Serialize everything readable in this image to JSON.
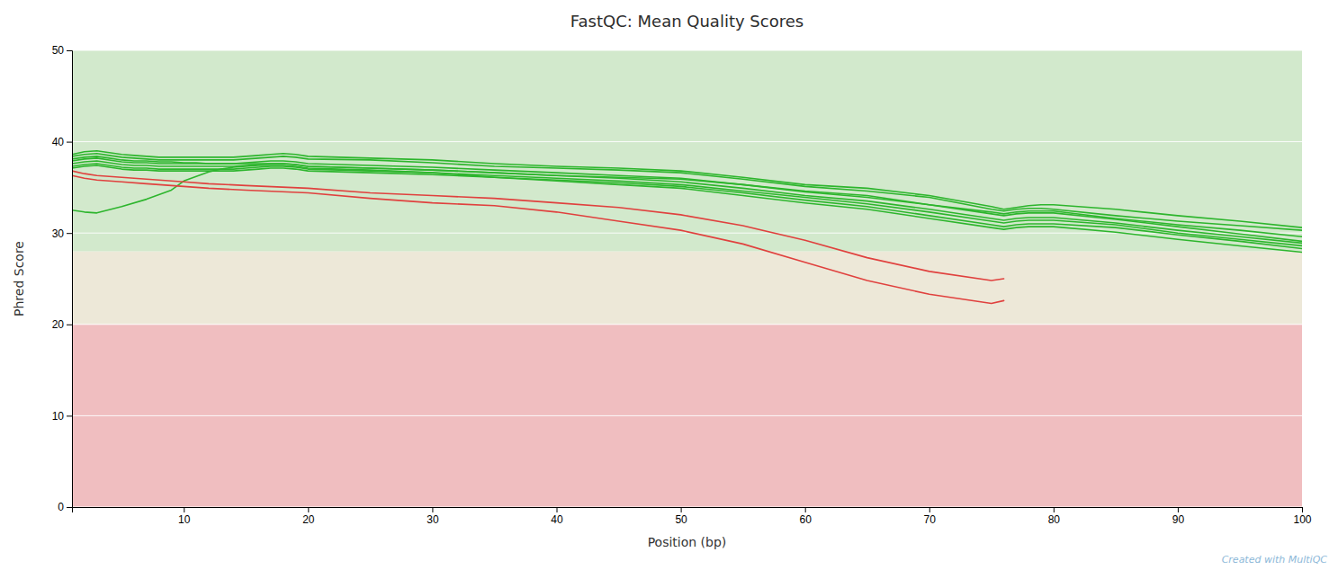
{
  "chart_data": {
    "type": "line",
    "title": "FastQC: Mean Quality Scores",
    "xlabel": "Position (bp)",
    "ylabel": "Phred Score",
    "annotation": "Created with MultiQC",
    "xlim": [
      1,
      100
    ],
    "ylim": [
      0,
      50
    ],
    "xticks": [
      10,
      20,
      30,
      40,
      50,
      60,
      70,
      80,
      90,
      100
    ],
    "yticks": [
      0,
      10,
      20,
      30,
      40,
      50
    ],
    "grid": true,
    "bands": [
      {
        "ymin": 0,
        "ymax": 20,
        "color": "#f0bec0"
      },
      {
        "ymin": 20,
        "ymax": 28,
        "color": "#ede8d8"
      },
      {
        "ymin": 28,
        "ymax": 50,
        "color": "#d2e9cc"
      }
    ],
    "series": [
      {
        "color": "#2db52d",
        "x": [
          1,
          2,
          3,
          4,
          5,
          6,
          7,
          8,
          9,
          10,
          11,
          12,
          13,
          14,
          15,
          16,
          17,
          18,
          19,
          20,
          25,
          30,
          35,
          40,
          45,
          50,
          55,
          60,
          65,
          70,
          75,
          76,
          77,
          78,
          79,
          80,
          85,
          90,
          95,
          100
        ],
        "values": [
          38.1,
          38.3,
          38.4,
          38.2,
          38.0,
          37.9,
          37.9,
          37.8,
          37.8,
          37.7,
          37.7,
          37.6,
          37.6,
          37.6,
          37.6,
          37.6,
          37.6,
          37.6,
          37.5,
          37.3,
          37.1,
          36.9,
          36.6,
          36.3,
          36.1,
          35.9,
          35.3,
          34.6,
          34.1,
          33.1,
          32.3,
          32.1,
          32.3,
          32.4,
          32.4,
          32.4,
          31.6,
          30.9,
          30.3,
          29.6
        ]
      },
      {
        "color": "#2db52d",
        "x": [
          1,
          2,
          3,
          4,
          5,
          6,
          7,
          8,
          9,
          10,
          11,
          12,
          13,
          14,
          15,
          16,
          17,
          18,
          19,
          20,
          25,
          30,
          35,
          40,
          45,
          50,
          55,
          60,
          65,
          70,
          75,
          76,
          77,
          78,
          79,
          80,
          85,
          90,
          95,
          100
        ],
        "values": [
          38.4,
          38.6,
          38.7,
          38.5,
          38.3,
          38.2,
          38.1,
          38.0,
          38.0,
          38.0,
          38.0,
          38.0,
          38.0,
          38.0,
          38.1,
          38.2,
          38.3,
          38.4,
          38.3,
          38.1,
          38.0,
          37.7,
          37.3,
          37.1,
          36.9,
          36.6,
          35.9,
          35.1,
          34.6,
          33.9,
          32.6,
          32.4,
          32.6,
          32.7,
          32.7,
          32.6,
          31.9,
          31.3,
          30.8,
          30.3
        ]
      },
      {
        "color": "#2db52d",
        "x": [
          1,
          2,
          3,
          4,
          5,
          6,
          7,
          8,
          9,
          10,
          11,
          12,
          13,
          14,
          15,
          16,
          17,
          18,
          19,
          20,
          25,
          30,
          35,
          40,
          45,
          50,
          55,
          60,
          65,
          70,
          75,
          76,
          77,
          78,
          79,
          80,
          85,
          90,
          95,
          100
        ],
        "values": [
          37.9,
          38.1,
          38.2,
          38.0,
          37.8,
          37.7,
          37.7,
          37.6,
          37.6,
          37.6,
          37.6,
          37.6,
          37.6,
          37.6,
          37.7,
          37.8,
          37.9,
          37.9,
          37.8,
          37.6,
          37.4,
          37.2,
          36.9,
          36.6,
          36.3,
          36.0,
          35.3,
          34.5,
          33.9,
          33.1,
          32.1,
          31.9,
          32.1,
          32.2,
          32.2,
          32.2,
          31.5,
          30.7,
          29.9,
          29.1
        ]
      },
      {
        "color": "#2db52d",
        "x": [
          1,
          2,
          3,
          4,
          5,
          6,
          7,
          8,
          9,
          10,
          11,
          12,
          13,
          14,
          15,
          16,
          17,
          18,
          19,
          20,
          25,
          30,
          35,
          40,
          45,
          50,
          55,
          60,
          65,
          70,
          75,
          76,
          77,
          78,
          79,
          80,
          85,
          90,
          95,
          100
        ],
        "values": [
          37.6,
          37.8,
          37.9,
          37.7,
          37.5,
          37.4,
          37.4,
          37.3,
          37.3,
          37.3,
          37.3,
          37.3,
          37.3,
          37.3,
          37.4,
          37.5,
          37.6,
          37.6,
          37.5,
          37.3,
          37.1,
          36.9,
          36.6,
          36.3,
          36.0,
          35.6,
          34.9,
          34.1,
          33.5,
          32.6,
          31.6,
          31.4,
          31.6,
          31.7,
          31.7,
          31.7,
          31.1,
          30.3,
          29.6,
          28.9
        ]
      },
      {
        "color": "#2db52d",
        "x": [
          1,
          2,
          3,
          4,
          5,
          6,
          7,
          8,
          9,
          10,
          11,
          12,
          13,
          14,
          15,
          16,
          17,
          18,
          19,
          20,
          25,
          30,
          35,
          40,
          45,
          50,
          55,
          60,
          65,
          70,
          75,
          76,
          77,
          78,
          79,
          80,
          85,
          90,
          95,
          100
        ],
        "values": [
          37.3,
          37.5,
          37.6,
          37.4,
          37.2,
          37.1,
          37.1,
          37.0,
          37.0,
          37.0,
          37.0,
          37.0,
          37.0,
          37.0,
          37.1,
          37.2,
          37.3,
          37.3,
          37.2,
          37.0,
          36.8,
          36.6,
          36.3,
          36.0,
          35.7,
          35.3,
          34.6,
          33.9,
          33.2,
          32.3,
          31.3,
          31.1,
          31.3,
          31.4,
          31.4,
          31.4,
          30.9,
          30.0,
          29.3,
          28.6
        ]
      },
      {
        "color": "#2db52d",
        "x": [
          1,
          2,
          3,
          5,
          7,
          9,
          10,
          11,
          12,
          13,
          14,
          15,
          16,
          17,
          18,
          19,
          20,
          25,
          30,
          35,
          40,
          45,
          50,
          55,
          60,
          65,
          70,
          75,
          76,
          77,
          78,
          79,
          80,
          85,
          90,
          95,
          100
        ],
        "values": [
          32.5,
          32.3,
          32.2,
          32.9,
          33.7,
          34.7,
          35.7,
          36.2,
          36.7,
          37.0,
          37.2,
          37.3,
          37.4,
          37.4,
          37.4,
          37.3,
          37.1,
          36.9,
          36.6,
          36.1,
          35.7,
          35.3,
          34.9,
          34.1,
          33.3,
          32.6,
          31.6,
          30.6,
          30.4,
          30.6,
          30.7,
          30.7,
          30.7,
          30.1,
          29.3,
          28.6,
          27.9
        ]
      },
      {
        "color": "#2db52d",
        "x": [
          1,
          2,
          3,
          4,
          5,
          6,
          7,
          8,
          9,
          10,
          11,
          12,
          13,
          14,
          15,
          16,
          17,
          18,
          19,
          20,
          25,
          30,
          35,
          40,
          45,
          50,
          55,
          60,
          65,
          70,
          75,
          76,
          77,
          78,
          79,
          80,
          85,
          90,
          95,
          100
        ],
        "values": [
          37.1,
          37.3,
          37.4,
          37.2,
          37.0,
          36.9,
          36.9,
          36.8,
          36.8,
          36.8,
          36.8,
          36.8,
          36.8,
          36.8,
          36.9,
          37.0,
          37.1,
          37.1,
          37.0,
          36.8,
          36.6,
          36.4,
          36.1,
          35.8,
          35.5,
          35.1,
          34.4,
          33.6,
          32.9,
          31.9,
          30.9,
          30.7,
          30.9,
          31.0,
          31.0,
          31.0,
          30.6,
          29.8,
          29.1,
          28.3
        ]
      },
      {
        "color": "#2db52d",
        "x": [
          1,
          2,
          3,
          4,
          5,
          6,
          7,
          8,
          9,
          10,
          11,
          12,
          13,
          14,
          15,
          16,
          17,
          18,
          19,
          20,
          25,
          30,
          35,
          40,
          45,
          50,
          55,
          60,
          65,
          70,
          75,
          76,
          77,
          78,
          79,
          80,
          85,
          90,
          95,
          100
        ],
        "values": [
          38.6,
          38.9,
          39.0,
          38.8,
          38.6,
          38.5,
          38.4,
          38.3,
          38.3,
          38.3,
          38.3,
          38.3,
          38.3,
          38.3,
          38.4,
          38.5,
          38.6,
          38.7,
          38.6,
          38.4,
          38.2,
          38.0,
          37.6,
          37.3,
          37.1,
          36.8,
          36.1,
          35.3,
          34.9,
          34.1,
          32.9,
          32.6,
          32.8,
          33.0,
          33.1,
          33.1,
          32.6,
          31.9,
          31.3,
          30.6
        ]
      },
      {
        "color": "#e0413e",
        "x": [
          1,
          2,
          3,
          5,
          7,
          9,
          10,
          12,
          15,
          20,
          25,
          30,
          35,
          40,
          45,
          50,
          55,
          60,
          65,
          70,
          75,
          76
        ],
        "values": [
          36.8,
          36.5,
          36.3,
          36.1,
          35.9,
          35.7,
          35.6,
          35.4,
          35.2,
          34.9,
          34.4,
          34.1,
          33.8,
          33.3,
          32.8,
          32.0,
          30.8,
          29.2,
          27.3,
          25.8,
          24.8,
          25.0
        ]
      },
      {
        "color": "#e0413e",
        "x": [
          1,
          2,
          3,
          5,
          7,
          9,
          10,
          12,
          15,
          20,
          25,
          30,
          35,
          40,
          45,
          50,
          55,
          60,
          65,
          70,
          75,
          76
        ],
        "values": [
          36.3,
          36.0,
          35.8,
          35.6,
          35.4,
          35.2,
          35.1,
          34.9,
          34.7,
          34.4,
          33.8,
          33.3,
          33.0,
          32.3,
          31.3,
          30.3,
          28.8,
          26.8,
          24.8,
          23.3,
          22.3,
          22.6
        ]
      }
    ]
  }
}
